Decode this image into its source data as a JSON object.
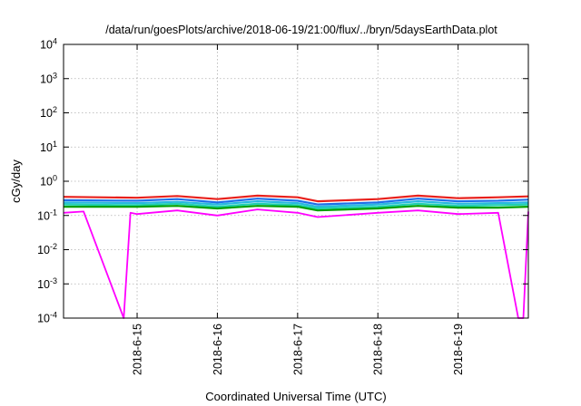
{
  "chart_data": {
    "type": "line",
    "title": "/data/run/goesPlots/archive/2018-06-19/21:00/flux/../bryn/5daysEarthData.plot",
    "xlabel": "Coordinated Universal Time (UTC)",
    "ylabel": "cGy/day",
    "yscale": "log",
    "ylim": [
      0.0001,
      10000
    ],
    "xlim": [
      "2018-06-14T02:00",
      "2018-06-19T21:00"
    ],
    "y_ticks": [
      {
        "base": "10",
        "exp": "-4",
        "value": 0.0001
      },
      {
        "base": "10",
        "exp": "-3",
        "value": 0.001
      },
      {
        "base": "10",
        "exp": "-2",
        "value": 0.01
      },
      {
        "base": "10",
        "exp": "-1",
        "value": 0.1
      },
      {
        "base": "10",
        "exp": "0",
        "value": 1
      },
      {
        "base": "10",
        "exp": "1",
        "value": 10
      },
      {
        "base": "10",
        "exp": "2",
        "value": 100
      },
      {
        "base": "10",
        "exp": "3",
        "value": 1000
      },
      {
        "base": "10",
        "exp": "4",
        "value": 10000
      }
    ],
    "x_ticks": [
      {
        "label": "2018-6-15",
        "value": "2018-06-15T00:00"
      },
      {
        "label": "2018-6-16",
        "value": "2018-06-16T00:00"
      },
      {
        "label": "2018-6-17",
        "value": "2018-06-17T00:00"
      },
      {
        "label": "2018-6-18",
        "value": "2018-06-18T00:00"
      },
      {
        "label": "2018-6-19",
        "value": "2018-06-19T00:00"
      }
    ],
    "grid": true,
    "legend": "none",
    "series_colors": [
      "#e8201c",
      "#1e6fe8",
      "#28b8e0",
      "#20d0b0",
      "#00a000",
      "#ff00ff"
    ],
    "series": [
      {
        "color": "#e8201c",
        "x": [
          "2018-06-14T02:00",
          "2018-06-15T00:00",
          "2018-06-15T12:00",
          "2018-06-16T00:00",
          "2018-06-16T12:00",
          "2018-06-17T00:00",
          "2018-06-17T06:00",
          "2018-06-18T00:00",
          "2018-06-18T12:00",
          "2018-06-19T00:00",
          "2018-06-19T12:00",
          "2018-06-19T21:00"
        ],
        "values": [
          0.35,
          0.33,
          0.37,
          0.3,
          0.38,
          0.34,
          0.26,
          0.3,
          0.38,
          0.32,
          0.34,
          0.36
        ]
      },
      {
        "color": "#1e6fe8",
        "x": [
          "2018-06-14T02:00",
          "2018-06-15T00:00",
          "2018-06-15T12:00",
          "2018-06-16T00:00",
          "2018-06-16T12:00",
          "2018-06-17T00:00",
          "2018-06-17T06:00",
          "2018-06-18T00:00",
          "2018-06-18T12:00",
          "2018-06-19T00:00",
          "2018-06-19T12:00",
          "2018-06-19T21:00"
        ],
        "values": [
          0.28,
          0.27,
          0.3,
          0.24,
          0.31,
          0.27,
          0.21,
          0.24,
          0.31,
          0.26,
          0.27,
          0.29
        ]
      },
      {
        "color": "#28b8e0",
        "x": [
          "2018-06-14T02:00",
          "2018-06-15T00:00",
          "2018-06-15T12:00",
          "2018-06-16T00:00",
          "2018-06-16T12:00",
          "2018-06-17T00:00",
          "2018-06-17T06:00",
          "2018-06-18T00:00",
          "2018-06-18T12:00",
          "2018-06-19T00:00",
          "2018-06-19T12:00",
          "2018-06-19T21:00"
        ],
        "values": [
          0.24,
          0.23,
          0.25,
          0.21,
          0.26,
          0.23,
          0.18,
          0.21,
          0.26,
          0.22,
          0.23,
          0.24
        ]
      },
      {
        "color": "#20d0b0",
        "x": [
          "2018-06-14T02:00",
          "2018-06-15T00:00",
          "2018-06-15T12:00",
          "2018-06-16T00:00",
          "2018-06-16T12:00",
          "2018-06-17T00:00",
          "2018-06-17T06:00",
          "2018-06-18T00:00",
          "2018-06-18T12:00",
          "2018-06-19T00:00",
          "2018-06-19T12:00",
          "2018-06-19T21:00"
        ],
        "values": [
          0.21,
          0.2,
          0.22,
          0.18,
          0.22,
          0.2,
          0.16,
          0.18,
          0.22,
          0.19,
          0.2,
          0.21
        ]
      },
      {
        "color": "#00a000",
        "x": [
          "2018-06-14T02:00",
          "2018-06-15T00:00",
          "2018-06-15T12:00",
          "2018-06-16T00:00",
          "2018-06-16T12:00",
          "2018-06-17T00:00",
          "2018-06-17T06:00",
          "2018-06-18T00:00",
          "2018-06-18T12:00",
          "2018-06-19T00:00",
          "2018-06-19T12:00",
          "2018-06-19T21:00"
        ],
        "values": [
          0.18,
          0.18,
          0.19,
          0.16,
          0.19,
          0.18,
          0.14,
          0.16,
          0.19,
          0.17,
          0.17,
          0.18
        ]
      },
      {
        "color": "#ff00ff",
        "x": [
          "2018-06-14T02:00",
          "2018-06-14T08:00",
          "2018-06-14T20:00",
          "2018-06-14T22:00",
          "2018-06-15T00:00",
          "2018-06-15T12:00",
          "2018-06-16T00:00",
          "2018-06-16T12:00",
          "2018-06-17T00:00",
          "2018-06-17T06:00",
          "2018-06-18T00:00",
          "2018-06-18T12:00",
          "2018-06-19T00:00",
          "2018-06-19T12:00",
          "2018-06-19T18:00",
          "2018-06-19T19:30",
          "2018-06-19T21:00"
        ],
        "values": [
          0.12,
          0.13,
          0.0001,
          0.12,
          0.11,
          0.14,
          0.1,
          0.15,
          0.12,
          0.09,
          0.12,
          0.14,
          0.11,
          0.12,
          0.0001,
          0.0001,
          0.13
        ]
      }
    ]
  }
}
